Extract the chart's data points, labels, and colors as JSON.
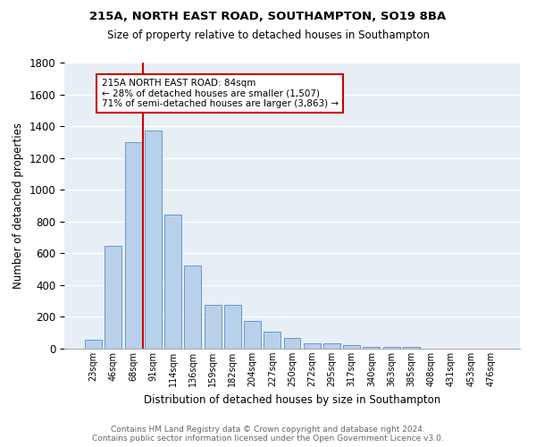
{
  "title1": "215A, NORTH EAST ROAD, SOUTHAMPTON, SO19 8BA",
  "title2": "Size of property relative to detached houses in Southampton",
  "xlabel": "Distribution of detached houses by size in Southampton",
  "ylabel": "Number of detached properties",
  "bar_color": "#b8d0ea",
  "bar_edge_color": "#6699cc",
  "bg_color": "#e8eef5",
  "grid_color": "white",
  "categories": [
    "23sqm",
    "46sqm",
    "68sqm",
    "91sqm",
    "114sqm",
    "136sqm",
    "159sqm",
    "182sqm",
    "204sqm",
    "227sqm",
    "250sqm",
    "272sqm",
    "295sqm",
    "317sqm",
    "340sqm",
    "363sqm",
    "385sqm",
    "408sqm",
    "431sqm",
    "453sqm",
    "476sqm"
  ],
  "values": [
    55,
    645,
    1300,
    1370,
    845,
    525,
    275,
    275,
    175,
    105,
    65,
    35,
    35,
    22,
    10,
    10,
    10,
    0,
    0,
    0,
    0
  ],
  "ylim": [
    0,
    1800
  ],
  "yticks": [
    0,
    200,
    400,
    600,
    800,
    1000,
    1200,
    1400,
    1600,
    1800
  ],
  "vline_color": "#cc0000",
  "vline_pos": 2.5,
  "annotation_title": "215A NORTH EAST ROAD: 84sqm",
  "annotation_line1": "← 28% of detached houses are smaller (1,507)",
  "annotation_line2": "71% of semi-detached houses are larger (3,863) →",
  "annotation_box_color": "#cc0000",
  "footer1": "Contains HM Land Registry data © Crown copyright and database right 2024.",
  "footer2": "Contains public sector information licensed under the Open Government Licence v3.0."
}
